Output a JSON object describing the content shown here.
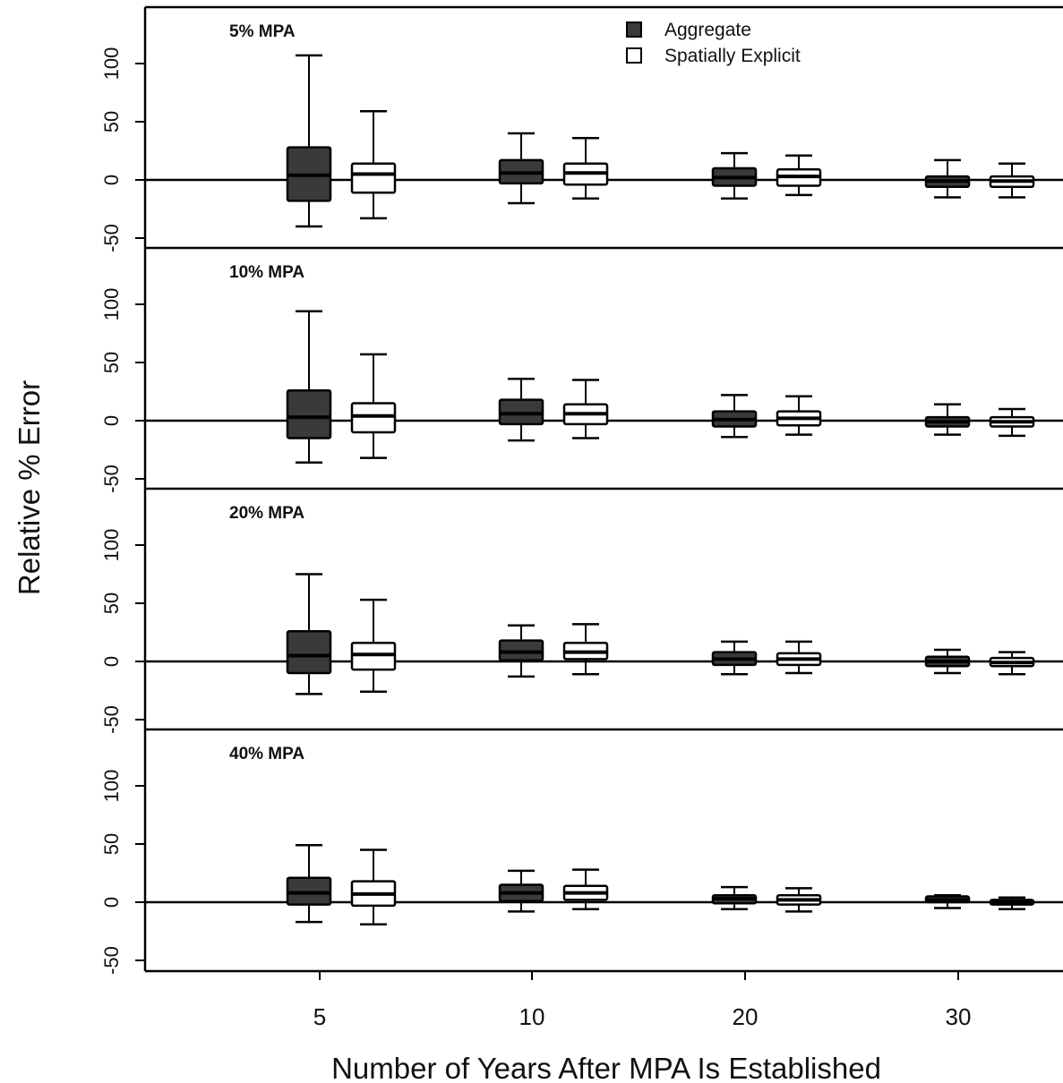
{
  "chart_data": {
    "type": "box",
    "ylabel": "Relative % Error",
    "xlabel": "Number of Years After MPA Is Established",
    "x_categories": [
      "5",
      "10",
      "20",
      "30"
    ],
    "y_ticks": [
      -50,
      0,
      50,
      100
    ],
    "ylim": [
      -58,
      150
    ],
    "reference_line_y": 0,
    "legend": {
      "position": "top-center",
      "entries": [
        {
          "name": "Aggregate",
          "fill": "#3a3a3a"
        },
        {
          "name": "Spatially Explicit",
          "fill": "#ffffff"
        }
      ]
    },
    "colors": {
      "aggregate": "#3a3a3a",
      "spatial": "#ffffff",
      "stroke": "#000000"
    },
    "panels": [
      {
        "title": "5% MPA",
        "series": [
          {
            "name": "Aggregate",
            "boxes": [
              {
                "x": "5",
                "min": -40,
                "q1": -18,
                "median": 4,
                "q3": 28,
                "max": 107
              },
              {
                "x": "10",
                "min": -20,
                "q1": -3,
                "median": 6,
                "q3": 17,
                "max": 40
              },
              {
                "x": "20",
                "min": -16,
                "q1": -5,
                "median": 2,
                "q3": 10,
                "max": 23
              },
              {
                "x": "30",
                "min": -15,
                "q1": -6,
                "median": -1,
                "q3": 3,
                "max": 17
              }
            ]
          },
          {
            "name": "Spatially Explicit",
            "boxes": [
              {
                "x": "5",
                "min": -33,
                "q1": -11,
                "median": 5,
                "q3": 14,
                "max": 59
              },
              {
                "x": "10",
                "min": -16,
                "q1": -4,
                "median": 6,
                "q3": 14,
                "max": 36
              },
              {
                "x": "20",
                "min": -13,
                "q1": -5,
                "median": 3,
                "q3": 9,
                "max": 21
              },
              {
                "x": "30",
                "min": -15,
                "q1": -6,
                "median": -1,
                "q3": 3,
                "max": 14
              }
            ]
          }
        ]
      },
      {
        "title": "10% MPA",
        "series": [
          {
            "name": "Aggregate",
            "boxes": [
              {
                "x": "5",
                "min": -36,
                "q1": -15,
                "median": 3,
                "q3": 26,
                "max": 94
              },
              {
                "x": "10",
                "min": -17,
                "q1": -3,
                "median": 6,
                "q3": 18,
                "max": 36
              },
              {
                "x": "20",
                "min": -14,
                "q1": -5,
                "median": 1,
                "q3": 8,
                "max": 22
              },
              {
                "x": "30",
                "min": -12,
                "q1": -5,
                "median": -1,
                "q3": 3,
                "max": 14
              }
            ]
          },
          {
            "name": "Spatially Explicit",
            "boxes": [
              {
                "x": "5",
                "min": -32,
                "q1": -10,
                "median": 4,
                "q3": 15,
                "max": 57
              },
              {
                "x": "10",
                "min": -15,
                "q1": -3,
                "median": 6,
                "q3": 14,
                "max": 35
              },
              {
                "x": "20",
                "min": -12,
                "q1": -4,
                "median": 2,
                "q3": 8,
                "max": 21
              },
              {
                "x": "30",
                "min": -13,
                "q1": -5,
                "median": -1,
                "q3": 3,
                "max": 10
              }
            ]
          }
        ]
      },
      {
        "title": "20% MPA",
        "series": [
          {
            "name": "Aggregate",
            "boxes": [
              {
                "x": "5",
                "min": -28,
                "q1": -10,
                "median": 5,
                "q3": 26,
                "max": 75
              },
              {
                "x": "10",
                "min": -13,
                "q1": 1,
                "median": 8,
                "q3": 18,
                "max": 31
              },
              {
                "x": "20",
                "min": -11,
                "q1": -3,
                "median": 2,
                "q3": 8,
                "max": 17
              },
              {
                "x": "30",
                "min": -10,
                "q1": -4,
                "median": 0,
                "q3": 4,
                "max": 10
              }
            ]
          },
          {
            "name": "Spatially Explicit",
            "boxes": [
              {
                "x": "5",
                "min": -26,
                "q1": -7,
                "median": 6,
                "q3": 16,
                "max": 53
              },
              {
                "x": "10",
                "min": -11,
                "q1": 2,
                "median": 8,
                "q3": 16,
                "max": 32
              },
              {
                "x": "20",
                "min": -10,
                "q1": -3,
                "median": 2,
                "q3": 7,
                "max": 17
              },
              {
                "x": "30",
                "min": -11,
                "q1": -4,
                "median": -1,
                "q3": 3,
                "max": 8
              }
            ]
          }
        ]
      },
      {
        "title": "40% MPA",
        "series": [
          {
            "name": "Aggregate",
            "boxes": [
              {
                "x": "5",
                "min": -17,
                "q1": -2,
                "median": 8,
                "q3": 21,
                "max": 49
              },
              {
                "x": "10",
                "min": -8,
                "q1": 1,
                "median": 8,
                "q3": 15,
                "max": 27
              },
              {
                "x": "20",
                "min": -6,
                "q1": -1,
                "median": 3,
                "q3": 6,
                "max": 13
              },
              {
                "x": "30",
                "min": -5,
                "q1": 0,
                "median": 2,
                "q3": 5,
                "max": 6
              }
            ]
          },
          {
            "name": "Spatially Explicit",
            "boxes": [
              {
                "x": "5",
                "min": -19,
                "q1": -3,
                "median": 7,
                "q3": 18,
                "max": 45
              },
              {
                "x": "10",
                "min": -6,
                "q1": 2,
                "median": 8,
                "q3": 14,
                "max": 28
              },
              {
                "x": "20",
                "min": -8,
                "q1": -2,
                "median": 2,
                "q3": 6,
                "max": 12
              },
              {
                "x": "30",
                "min": -6,
                "q1": -2,
                "median": 0,
                "q3": 2,
                "max": 4
              }
            ]
          }
        ]
      }
    ]
  }
}
